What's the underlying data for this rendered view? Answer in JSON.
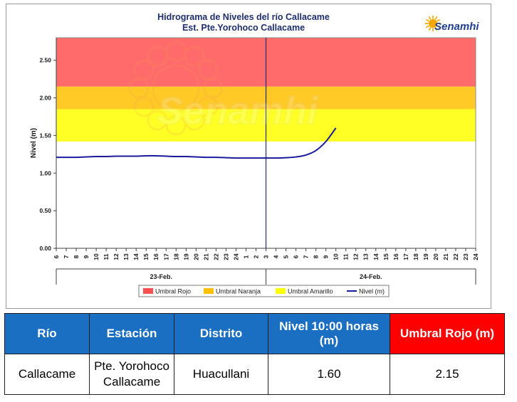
{
  "chart_data": {
    "type": "line",
    "title": "Hidrograma de Niveles del río Callacame",
    "subtitle": "Est. Pte.Yorohoco Callacame",
    "ylabel": "Nivel (m)",
    "xlabel": "",
    "ylim": [
      0,
      2.8
    ],
    "y_ticks": [
      "0.00",
      "0.50",
      "1.00",
      "1.50",
      "2.00",
      "2.50"
    ],
    "x_hours": [
      "6",
      "7",
      "8",
      "9",
      "10",
      "11",
      "12",
      "13",
      "14",
      "15",
      "16",
      "17",
      "18",
      "19",
      "20",
      "21",
      "22",
      "23",
      "24",
      "1",
      "2",
      "3",
      "4",
      "5",
      "6",
      "7",
      "8",
      "9",
      "10",
      "11",
      "12",
      "13",
      "14",
      "15",
      "16",
      "17",
      "18",
      "19",
      "20",
      "21",
      "22",
      "23",
      "24"
    ],
    "day_groups": [
      {
        "label": "23-Feb.",
        "start": 0,
        "end": 21
      },
      {
        "label": "24-Feb.",
        "start": 21,
        "end": 42
      }
    ],
    "separator_index": 21,
    "thresholds": [
      {
        "name": "Umbral Rojo",
        "from": 2.15,
        "to": 2.8,
        "color": "#ff5050"
      },
      {
        "name": "Umbral Naranja",
        "from": 1.85,
        "to": 2.15,
        "color": "#ffc000"
      },
      {
        "name": "Umbral Amarillo",
        "from": 1.42,
        "to": 1.85,
        "color": "#ffff00"
      }
    ],
    "series": [
      {
        "name": "Nivel (m)",
        "color": "#1a1a9c",
        "x_index": [
          0,
          1,
          2,
          3,
          4,
          5,
          6,
          7,
          8,
          9,
          10,
          11,
          12,
          13,
          14,
          15,
          16,
          17,
          18,
          19,
          20,
          21,
          22,
          23,
          24,
          25,
          26,
          27,
          28
        ],
        "values": [
          1.21,
          1.21,
          1.21,
          1.215,
          1.22,
          1.22,
          1.225,
          1.225,
          1.225,
          1.23,
          1.23,
          1.225,
          1.22,
          1.22,
          1.215,
          1.21,
          1.21,
          1.205,
          1.2,
          1.2,
          1.2,
          1.2,
          1.2,
          1.205,
          1.215,
          1.24,
          1.3,
          1.42,
          1.6
        ]
      }
    ],
    "legend_position": "bottom",
    "grid": false
  },
  "logo": {
    "text": "Senamhi",
    "watermark": "Senamhi"
  },
  "table": {
    "headers": [
      "Río",
      "Estación",
      "Distrito",
      "Nivel 10:00 horas (m)",
      "Umbral Rojo (m)"
    ],
    "row": [
      "Callacame",
      "Pte. Yorohoco Callacame",
      "Huacullani",
      "1.60",
      "2.15"
    ]
  },
  "colors": {
    "header_blue": "#1a6fc2",
    "header_red": "#ff0000"
  }
}
